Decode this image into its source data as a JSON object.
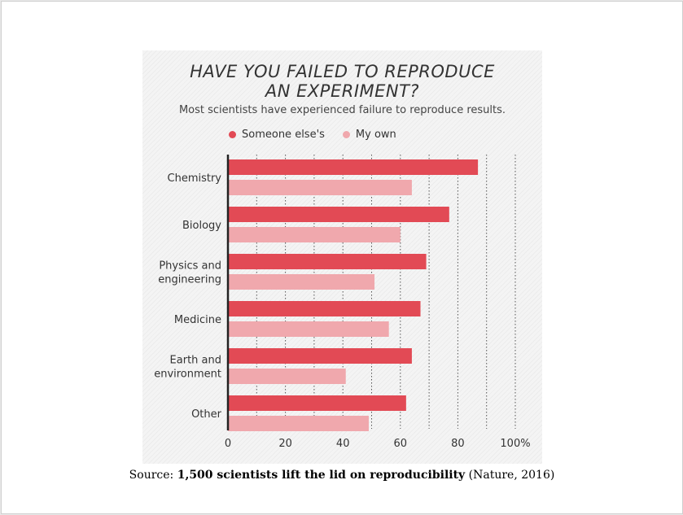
{
  "title_line1": "HAVE YOU FAILED TO REPRODUCE",
  "title_line2": "AN EXPERIMENT?",
  "subtitle": "Most scientists have experienced failure to reproduce results.",
  "source": {
    "prefix": "Source: ",
    "title": "1,500 scientists lift the lid on reproducibility",
    "suffix": " (Nature, 2016)"
  },
  "colors": {
    "someone_else": "#e24a55",
    "my_own": "#f0a8ad",
    "axis": "#222222",
    "grid": "#555555"
  },
  "chart_data": {
    "type": "bar",
    "orientation": "horizontal",
    "title": "HAVE YOU FAILED TO REPRODUCE AN EXPERIMENT?",
    "subtitle": "Most scientists have experienced failure to reproduce results.",
    "categories": [
      [
        "Chemistry"
      ],
      [
        "Biology"
      ],
      [
        "Physics and",
        "engineering"
      ],
      [
        "Medicine"
      ],
      [
        "Earth and",
        "environment"
      ],
      [
        "Other"
      ]
    ],
    "series": [
      {
        "name": "Someone else's",
        "values": [
          87,
          77,
          69,
          67,
          64,
          62
        ]
      },
      {
        "name": "My own",
        "values": [
          64,
          60,
          51,
          56,
          41,
          49
        ]
      }
    ],
    "xlim": [
      0,
      100
    ],
    "xticks": [
      0,
      20,
      40,
      60,
      80,
      100
    ],
    "xtick_labels": [
      "0",
      "20",
      "40",
      "60",
      "80",
      "100%"
    ],
    "grid": true,
    "legend": "top"
  }
}
